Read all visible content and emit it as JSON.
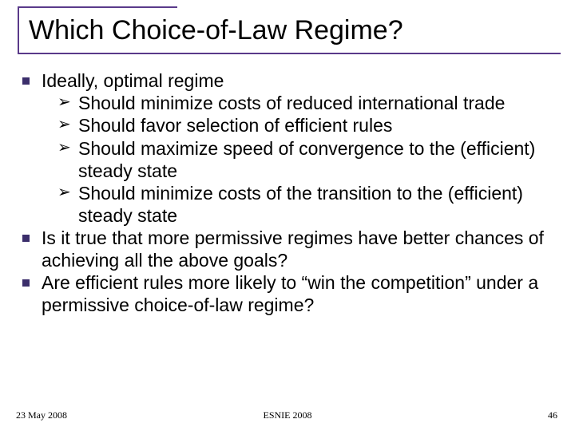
{
  "colors": {
    "accent_rule": "#5a3a8a",
    "bullet_square": "#3b2e6b",
    "text": "#000000",
    "background": "#ffffff"
  },
  "typography": {
    "title_fontsize": 34,
    "body_fontsize": 23,
    "footer_fontsize": 12,
    "title_font": "Arial",
    "footer_font": "Times New Roman"
  },
  "title": "Which Choice-of-Law Regime?",
  "bullets": [
    {
      "text": "Ideally, optimal regime",
      "subs": [
        "Should minimize costs of reduced international trade",
        "Should favor selection of efficient rules",
        "Should maximize speed of convergence to the (efficient) steady state",
        "Should minimize costs of the transition to the (efficient) steady state"
      ]
    },
    {
      "text": "Is it true that more permissive regimes have better chances of achieving all the above goals?",
      "subs": []
    },
    {
      "text": "Are efficient rules more likely to “win the competition” under a permissive choice-of-law regime?",
      "subs": []
    }
  ],
  "footer": {
    "date": "23 May 2008",
    "center": "ESNIE 2008",
    "page": "46"
  }
}
